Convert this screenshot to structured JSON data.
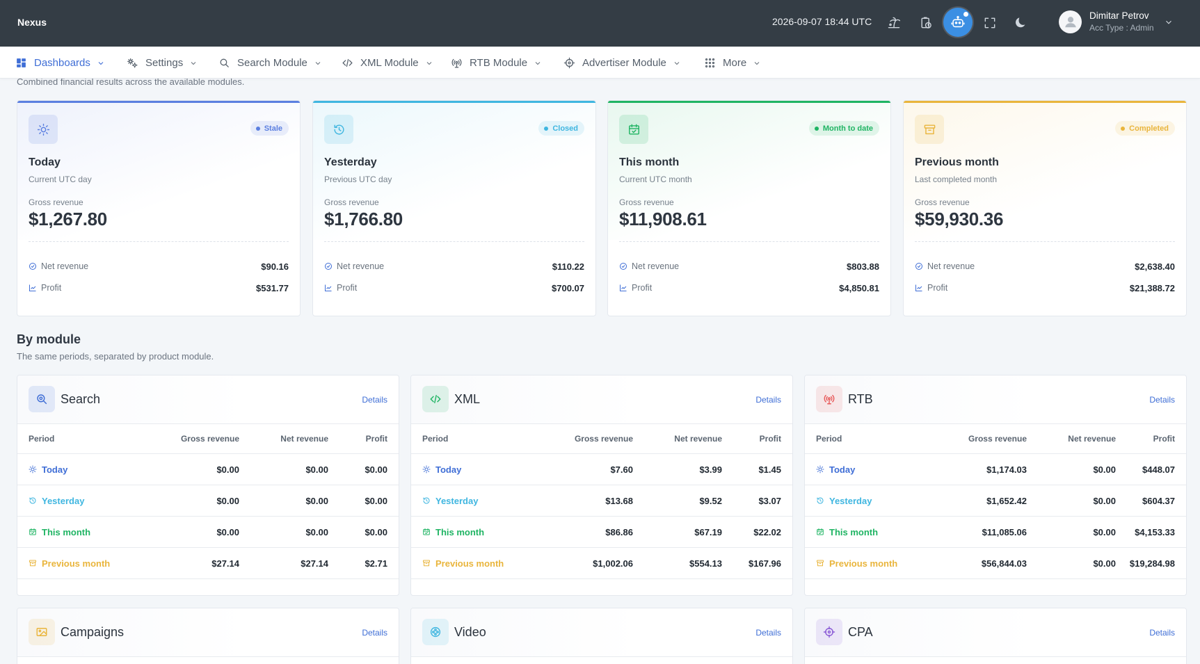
{
  "app": {
    "brand": "Nexus",
    "clock": "2026-09-07 18:44 UTC"
  },
  "user": {
    "name": "Dimitar Petrov",
    "role": "Acc Type : Admin"
  },
  "nav": [
    {
      "label": "Dashboards",
      "icon": "grid-dashboard-icon",
      "active": true
    },
    {
      "label": "Settings",
      "icon": "gears-icon"
    },
    {
      "label": "Search Module",
      "icon": "search-icon"
    },
    {
      "label": "XML Module",
      "icon": "code-icon"
    },
    {
      "label": "RTB Module",
      "icon": "broadcast-icon"
    },
    {
      "label": "Advertiser Module",
      "icon": "crosshair-icon"
    },
    {
      "label": "More",
      "icon": "apps-grid-icon"
    }
  ],
  "intro": "Combined financial results across the available modules.",
  "periods": [
    {
      "title": "Today",
      "subtitle": "Current UTC day",
      "badge": "Stale",
      "gross_label": "Gross revenue",
      "gross": "$1,267.80",
      "net_label": "Net revenue",
      "net": "$90.16",
      "profit_label": "Profit",
      "profit": "$531.77",
      "color": "#5b7fe0",
      "icon": "sun-icon"
    },
    {
      "title": "Yesterday",
      "subtitle": "Previous UTC day",
      "badge": "Closed",
      "gross_label": "Gross revenue",
      "gross": "$1,766.80",
      "net_label": "Net revenue",
      "net": "$110.22",
      "profit_label": "Profit",
      "profit": "$700.07",
      "color": "#3fb6e0",
      "icon": "history-icon"
    },
    {
      "title": "This month",
      "subtitle": "Current UTC month",
      "badge": "Month to date",
      "gross_label": "Gross revenue",
      "gross": "$11,908.61",
      "net_label": "Net revenue",
      "net": "$803.88",
      "profit_label": "Profit",
      "profit": "$4,850.81",
      "color": "#1fb463",
      "icon": "calendar-check-icon"
    },
    {
      "title": "Previous month",
      "subtitle": "Last completed month",
      "badge": "Completed",
      "gross_label": "Gross revenue",
      "gross": "$59,930.36",
      "net_label": "Net revenue",
      "net": "$2,638.40",
      "profit_label": "Profit",
      "profit": "$21,388.72",
      "color": "#e9b53c",
      "icon": "archive-icon"
    }
  ],
  "by_module": {
    "title": "By module",
    "subtitle": "The same periods, separated by product module."
  },
  "table_headers": {
    "period": "Period",
    "gross": "Gross revenue",
    "net": "Net revenue",
    "profit": "Profit"
  },
  "modules": [
    {
      "name": "Search",
      "details": "Details",
      "color": "#3f6ed6",
      "icon": "search-zoom-icon",
      "rows": [
        {
          "period": "Today",
          "gross": "$0.00",
          "net": "$0.00",
          "profit": "$0.00"
        },
        {
          "period": "Yesterday",
          "gross": "$0.00",
          "net": "$0.00",
          "profit": "$0.00"
        },
        {
          "period": "This month",
          "gross": "$0.00",
          "net": "$0.00",
          "profit": "$0.00"
        },
        {
          "period": "Previous month",
          "gross": "$27.14",
          "net": "$27.14",
          "profit": "$2.71"
        }
      ]
    },
    {
      "name": "XML",
      "details": "Details",
      "color": "#1fb463",
      "icon": "code-icon",
      "rows": [
        {
          "period": "Today",
          "gross": "$7.60",
          "net": "$3.99",
          "profit": "$1.45"
        },
        {
          "period": "Yesterday",
          "gross": "$13.68",
          "net": "$9.52",
          "profit": "$3.07"
        },
        {
          "period": "This month",
          "gross": "$86.86",
          "net": "$67.19",
          "profit": "$22.02"
        },
        {
          "period": "Previous month",
          "gross": "$1,002.06",
          "net": "$554.13",
          "profit": "$167.96"
        }
      ]
    },
    {
      "name": "RTB",
      "details": "Details",
      "color": "#e85a5a",
      "icon": "broadcast-icon",
      "rows": [
        {
          "period": "Today",
          "gross": "$1,174.03",
          "net": "$0.00",
          "profit": "$448.07"
        },
        {
          "period": "Yesterday",
          "gross": "$1,652.42",
          "net": "$0.00",
          "profit": "$604.37"
        },
        {
          "period": "This month",
          "gross": "$11,085.06",
          "net": "$0.00",
          "profit": "$4,153.33"
        },
        {
          "period": "Previous month",
          "gross": "$56,844.03",
          "net": "$0.00",
          "profit": "$19,284.98"
        }
      ]
    },
    {
      "name": "Campaigns",
      "details": "Details",
      "color": "#e9b53c",
      "icon": "image-ad-icon",
      "rows": []
    },
    {
      "name": "Video",
      "details": "Details",
      "color": "#3fb6e0",
      "icon": "film-reel-icon",
      "rows": []
    },
    {
      "name": "CPA",
      "details": "Details",
      "color": "#8b5cd6",
      "icon": "crosshair-icon",
      "rows": []
    }
  ],
  "period_row_colors": [
    "#3f6ed6",
    "#3fb6e0",
    "#1fb463",
    "#e9b53c"
  ]
}
